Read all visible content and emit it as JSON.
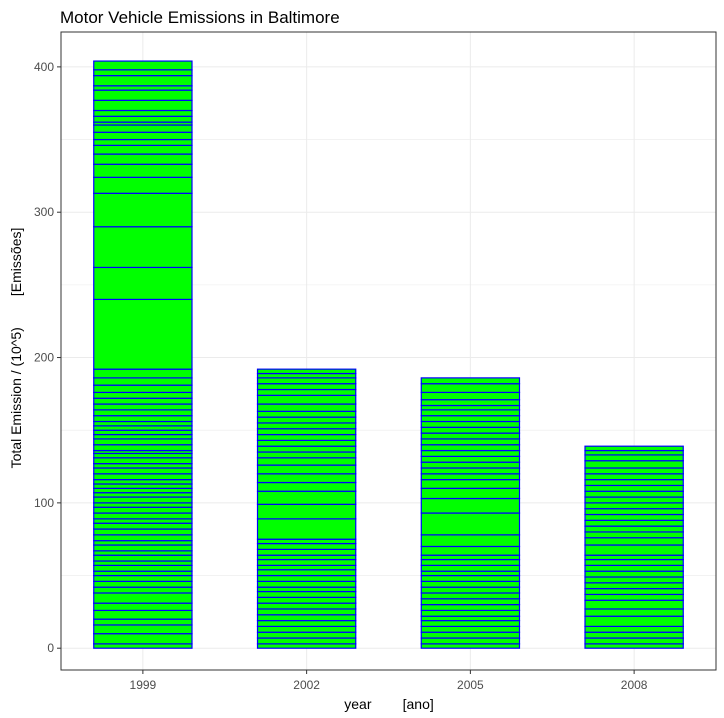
{
  "chart_data": {
    "type": "bar",
    "title": "Motor Vehicle Emissions in Baltimore",
    "xlabel": "year        [ano]",
    "ylabel": "Total Emission / (10^5)        [Emissões]",
    "categories": [
      "1999",
      "2002",
      "2005",
      "2008"
    ],
    "values": [
      404,
      192,
      186,
      139
    ],
    "ylim": [
      -15,
      424
    ],
    "yticks": [
      0,
      100,
      200,
      300,
      400
    ],
    "grid": true,
    "legend": "none",
    "stacked": true,
    "segment_boundaries": [
      [
        3,
        10,
        16,
        20,
        26,
        31,
        38,
        42,
        46,
        50,
        53,
        57,
        60,
        64,
        67,
        71,
        74,
        78,
        82,
        86,
        89,
        93,
        97,
        100,
        104,
        107,
        110,
        113,
        116,
        120,
        124,
        127,
        131,
        134,
        136,
        140,
        144,
        147,
        150,
        153,
        156,
        160,
        164,
        168,
        172,
        176,
        181,
        186,
        192,
        240,
        262,
        290,
        313,
        324,
        333,
        340,
        346,
        350,
        355,
        360,
        362,
        366,
        370,
        377,
        384,
        387,
        394,
        398,
        404
      ],
      [
        3,
        7,
        11,
        15,
        19,
        23,
        27,
        31,
        35,
        39,
        42,
        46,
        50,
        54,
        57,
        61,
        64,
        68,
        72,
        75,
        89,
        99,
        108,
        114,
        120,
        126,
        131,
        135,
        139,
        143,
        147,
        151,
        155,
        159,
        163,
        168,
        174,
        178,
        182,
        186,
        189,
        192
      ],
      [
        3,
        7,
        11,
        15,
        19,
        22,
        26,
        30,
        34,
        38,
        42,
        46,
        50,
        53,
        57,
        61,
        64,
        70,
        78,
        93,
        103,
        110,
        116,
        120,
        124,
        128,
        132,
        136,
        140,
        144,
        148,
        152,
        156,
        160,
        164,
        167,
        171,
        176,
        182,
        186
      ],
      [
        3,
        7,
        11,
        15,
        22,
        27,
        33,
        37,
        41,
        45,
        49,
        53,
        57,
        61,
        64,
        71,
        76,
        80,
        84,
        88,
        92,
        96,
        100,
        104,
        108,
        112,
        116,
        120,
        124,
        129,
        133,
        136,
        139
      ]
    ],
    "colors": {
      "fill": "#00ff00",
      "outline": "#0000ff",
      "grid": "#ebebeb",
      "panel_border": "#333333"
    }
  }
}
